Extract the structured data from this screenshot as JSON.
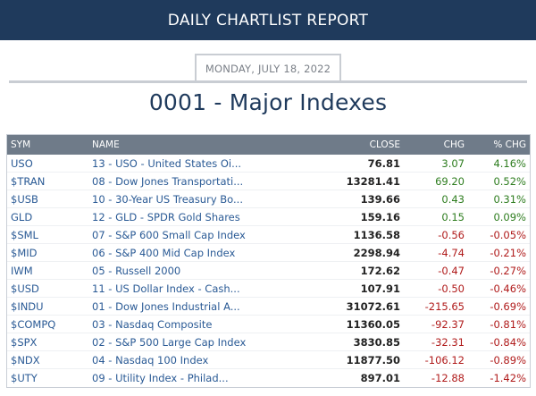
{
  "header": {
    "title": "DAILY CHARTLIST REPORT"
  },
  "date": "MONDAY, JULY 18, 2022",
  "list_title": "0001 - Major Indexes",
  "columns": {
    "sym": "SYM",
    "name": "NAME",
    "close": "CLOSE",
    "chg": "CHG",
    "pct": "% CHG"
  },
  "colors": {
    "header_bg": "#1f3a5c",
    "positive": "#2e7d1f",
    "negative": "#b01b1b",
    "link": "#2a5a95"
  },
  "rows": [
    {
      "sym": "USO",
      "name": "13 - USO - United States Oi...",
      "close": "76.81",
      "chg": "3.07",
      "pct": "4.16%",
      "dir": "pos"
    },
    {
      "sym": "$TRAN",
      "name": "08 - Dow Jones Transportati...",
      "close": "13281.41",
      "chg": "69.20",
      "pct": "0.52%",
      "dir": "pos"
    },
    {
      "sym": "$USB",
      "name": "10 - 30-Year US Treasury Bo...",
      "close": "139.66",
      "chg": "0.43",
      "pct": "0.31%",
      "dir": "pos"
    },
    {
      "sym": "GLD",
      "name": "12 - GLD - SPDR Gold Shares",
      "close": "159.16",
      "chg": "0.15",
      "pct": "0.09%",
      "dir": "pos"
    },
    {
      "sym": "$SML",
      "name": "07 - S&P 600 Small Cap Index",
      "close": "1136.58",
      "chg": "-0.56",
      "pct": "-0.05%",
      "dir": "neg"
    },
    {
      "sym": "$MID",
      "name": "06 - S&P 400 Mid Cap Index",
      "close": "2298.94",
      "chg": "-4.74",
      "pct": "-0.21%",
      "dir": "neg"
    },
    {
      "sym": "IWM",
      "name": "05 - Russell 2000",
      "close": "172.62",
      "chg": "-0.47",
      "pct": "-0.27%",
      "dir": "neg"
    },
    {
      "sym": "$USD",
      "name": "11 - US Dollar Index - Cash...",
      "close": "107.91",
      "chg": "-0.50",
      "pct": "-0.46%",
      "dir": "neg"
    },
    {
      "sym": "$INDU",
      "name": "01 - Dow Jones Industrial A...",
      "close": "31072.61",
      "chg": "-215.65",
      "pct": "-0.69%",
      "dir": "neg"
    },
    {
      "sym": "$COMPQ",
      "name": "03 - Nasdaq Composite",
      "close": "11360.05",
      "chg": "-92.37",
      "pct": "-0.81%",
      "dir": "neg"
    },
    {
      "sym": "$SPX",
      "name": "02 - S&P 500 Large Cap Index",
      "close": "3830.85",
      "chg": "-32.31",
      "pct": "-0.84%",
      "dir": "neg"
    },
    {
      "sym": "$NDX",
      "name": "04 - Nasdaq 100 Index",
      "close": "11877.50",
      "chg": "-106.12",
      "pct": "-0.89%",
      "dir": "neg"
    },
    {
      "sym": "$UTY",
      "name": "09 - Utility Index - Philad...",
      "close": "897.01",
      "chg": "-12.88",
      "pct": "-1.42%",
      "dir": "neg"
    }
  ]
}
